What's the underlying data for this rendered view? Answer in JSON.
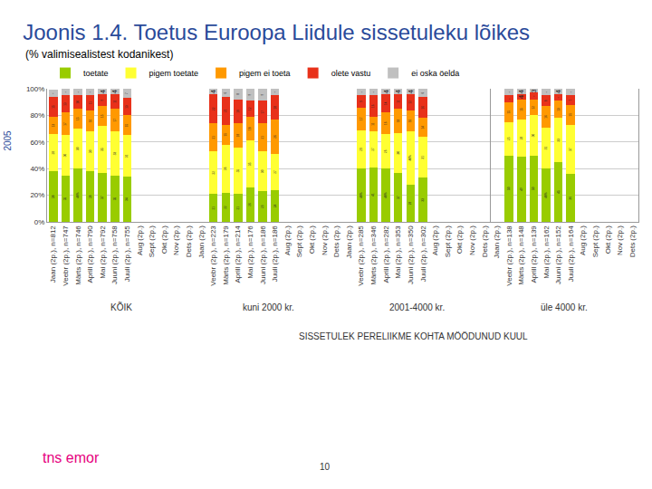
{
  "chart_data": {
    "type": "bar",
    "title": "Joonis 1.4. Toetus Euroopa Liidule sissetuleku lõikes",
    "subtitle": "(% valimisealistest kodanikest)",
    "y_label": "2005",
    "x_label": "SISSETULEK PERELIIKME KOHTA MÖÖDUNUD KUUL",
    "stacked": true,
    "data_labels": true,
    "legend": "top",
    "grid": true,
    "ylim": [
      0,
      100
    ],
    "yticks": [
      {
        "value": 0,
        "label": "0%"
      },
      {
        "value": 20,
        "label": "20%"
      },
      {
        "value": 40,
        "label": "40%"
      },
      {
        "value": 60,
        "label": "60%"
      },
      {
        "value": 80,
        "label": "80%"
      },
      {
        "value": 100,
        "label": "100%"
      }
    ],
    "groups": [
      "KÕIK",
      "kuni 2000 kr.",
      "2001-4000 kr.",
      "üle 4000 kr."
    ],
    "categories": [
      [
        "Jaan (2p.), n=812",
        "Veebr (2p.), n=747",
        "Märts (2p.), n=746",
        "Aprill (2p.), n=790",
        "Mai (2p.), n=792",
        "Juuni (2p.), n=758",
        "Juuli (2p.), n=755",
        "Aug (2p.)",
        "Sept (2p.)",
        "Okt (2p.)",
        "Nov (2p.)",
        "Dets (2p.)"
      ],
      [
        "Jaan (2p.)",
        "Veebr (2p.), n=223",
        "Märts (2p.), n=179",
        "Aprill (2p.), n=214",
        "Mai (2p.), n=176",
        "Juuni (2p.), n=186",
        "Juuli (2p.), n=186",
        "Aug (2p.)",
        "Sept (2p.)",
        "Okt (2p.)",
        "Nov (2p.)",
        "Dets (2p.)"
      ],
      [
        "Jaan (2p.)",
        "Veebr (2p.), n=285",
        "Märts (2p.), n=346",
        "Aprill (2p.), n=282",
        "Mai (2p.), n=353",
        "Juuni (2p.), n=350",
        "Juuli (2p.), n=302",
        "Aug (2p.)",
        "Sept (2p.)",
        "Okt (2p.)",
        "Nov (2p.)",
        "Dets (2p.)"
      ],
      [
        "Jaan (2p.)",
        "Veebr (2p.), n=138",
        "Märts (2p.), n=148",
        "Aprill (2p.), n=139",
        "Mai (2p.), n=162",
        "Juuni (2p.), n=152",
        "Juuli (2p.), n=164",
        "Aug (2p.)",
        "Sept (2p.)",
        "Okt (2p.)",
        "Nov (2p.)",
        "Dets (2p.)"
      ]
    ],
    "series": [
      {
        "name": "toetate",
        "color": "#99cc00",
        "values": [
          [
            38,
            35,
            40,
            38,
            37,
            35,
            34,
            null,
            null,
            null,
            null,
            null
          ],
          [
            null,
            21,
            22,
            21,
            26,
            23,
            24,
            null,
            null,
            null,
            null,
            null
          ],
          [
            null,
            40,
            41,
            40,
            37,
            28,
            33,
            null,
            null,
            null,
            null,
            null
          ],
          [
            null,
            50,
            49,
            50,
            40,
            45,
            36,
            null,
            null,
            null,
            null,
            null
          ]
        ]
      },
      {
        "name": "pigem toetate",
        "color": "#ffff33",
        "values": [
          [
            28,
            30,
            30,
            30,
            35,
            33,
            31,
            null,
            null,
            null,
            null,
            null
          ],
          [
            null,
            32,
            36,
            35,
            35,
            30,
            27,
            null,
            null,
            null,
            null,
            null
          ],
          [
            null,
            29,
            27,
            26,
            30,
            40,
            31,
            null,
            null,
            null,
            null,
            null
          ],
          [
            null,
            25,
            28,
            30,
            31,
            33,
            37,
            null,
            null,
            null,
            null,
            null
          ]
        ]
      },
      {
        "name": "pigem ei toeta",
        "color": "#ff9900",
        "values": [
          [
            13,
            17,
            15,
            16,
            15,
            17,
            15,
            null,
            null,
            null,
            null,
            null
          ],
          [
            null,
            21,
            15,
            18,
            18,
            21,
            26,
            null,
            null,
            null,
            null,
            null
          ],
          [
            null,
            17,
            11,
            16,
            18,
            16,
            14,
            null,
            null,
            null,
            null,
            null
          ],
          [
            null,
            15,
            15,
            12,
            16,
            13,
            15,
            null,
            null,
            null,
            null,
            null
          ]
        ]
      },
      {
        "name": "olete vastu",
        "color": "#e8311a",
        "values": [
          [
            15,
            13,
            10,
            11,
            9,
            11,
            13,
            null,
            null,
            null,
            null,
            null
          ],
          [
            null,
            22,
            21,
            18,
            12,
            17,
            18,
            null,
            null,
            null,
            null,
            null
          ],
          [
            null,
            9,
            16,
            14,
            11,
            12,
            16,
            null,
            null,
            null,
            null,
            null
          ],
          [
            null,
            5,
            4,
            5,
            8,
            5,
            7,
            null,
            null,
            null,
            null,
            null
          ]
        ]
      },
      {
        "name": "ei oska öelda",
        "color": "#c0c0c0",
        "values": [
          [
            5,
            5,
            5,
            5,
            4,
            4,
            7,
            null,
            null,
            null,
            null,
            null
          ],
          [
            null,
            4,
            6,
            8,
            9,
            9,
            5,
            null,
            null,
            null,
            null,
            null
          ],
          [
            null,
            5,
            5,
            4,
            4,
            4,
            6,
            null,
            null,
            null,
            null,
            null
          ],
          [
            null,
            5,
            4,
            3,
            5,
            4,
            5,
            null,
            null,
            null,
            null,
            null
          ]
        ]
      }
    ]
  },
  "footer": {
    "logo": "tns emor",
    "page": "10"
  }
}
